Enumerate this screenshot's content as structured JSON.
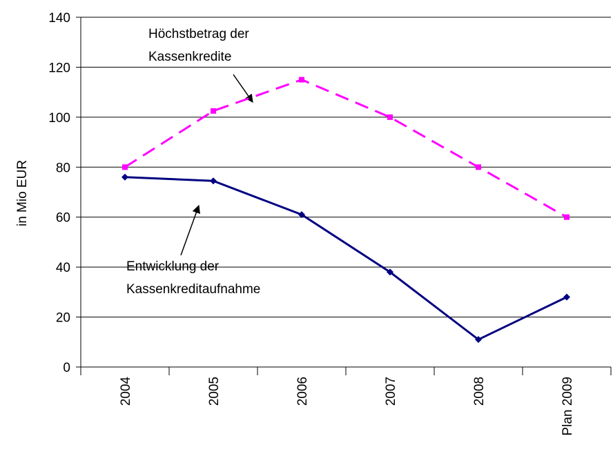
{
  "chart_data": {
    "type": "line",
    "y_label": "in Mio EUR",
    "categories": [
      "2004",
      "2005",
      "2006",
      "2007",
      "2008",
      "Plan 2009"
    ],
    "series": [
      {
        "color": "#ff00ff",
        "dashed": true,
        "marker": "square",
        "values": [
          80,
          102.5,
          115,
          100,
          80,
          60
        ]
      },
      {
        "color": "#000080",
        "dashed": false,
        "marker": "diamond",
        "values": [
          76,
          74.5,
          61,
          38,
          11,
          28
        ]
      }
    ],
    "ylim": [
      0,
      140
    ],
    "yticks": [
      0,
      20,
      40,
      60,
      80,
      100,
      120,
      140
    ],
    "grid": true,
    "annotations": [
      {
        "text": [
          "Höchstbetrag der",
          "Kassenkredite"
        ],
        "series": 0
      },
      {
        "text": [
          "Entwicklung der",
          "Kassenkreditaufnahme"
        ],
        "series": 1
      }
    ]
  }
}
